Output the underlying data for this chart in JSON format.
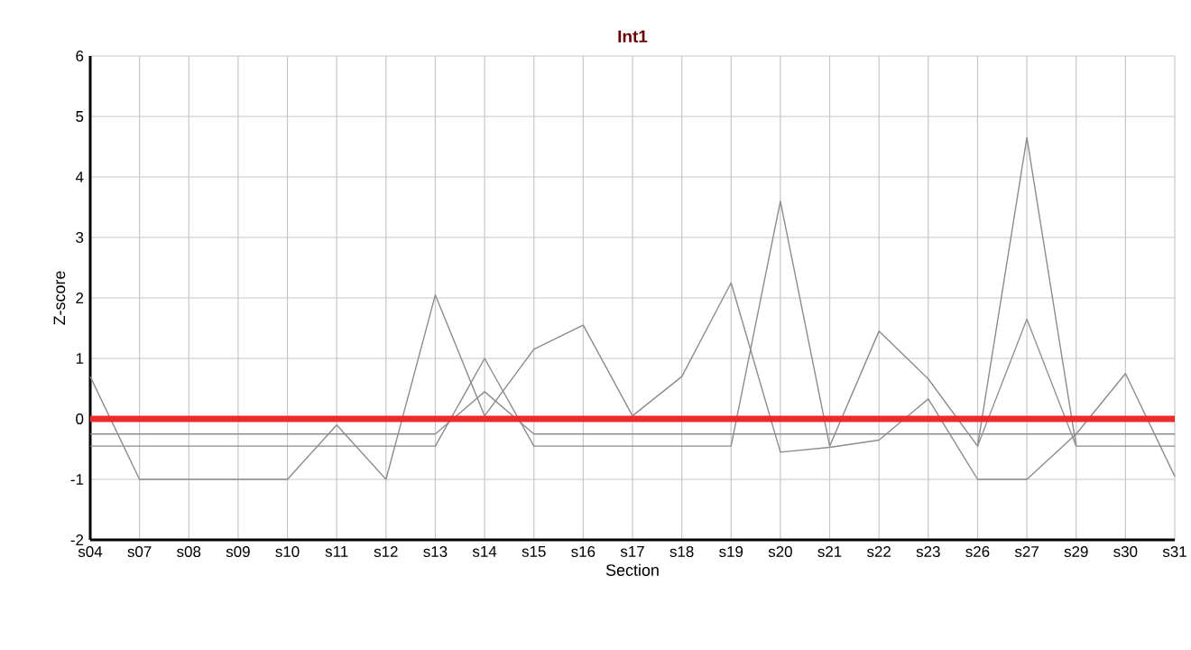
{
  "chart_data": {
    "type": "line",
    "title": "Int1",
    "xlabel": "Section",
    "ylabel": "Z-score",
    "categories": [
      "s04",
      "s07",
      "s08",
      "s09",
      "s10",
      "s11",
      "s12",
      "s13",
      "s14",
      "s15",
      "s16",
      "s17",
      "s18",
      "s19",
      "s20",
      "s21",
      "s22",
      "s23",
      "s26",
      "s27",
      "s29",
      "s30",
      "s31"
    ],
    "series": [
      {
        "color": "#8c8c8c",
        "values": [
          0.7,
          -1,
          -1,
          -1,
          -1,
          -0.1,
          -1,
          2.05,
          0.05,
          1.15,
          1.55,
          0.05,
          0.7,
          2.25,
          -0.55,
          -0.47,
          -0.35,
          0.33,
          -1,
          -1,
          -0.25,
          0.75,
          -0.95
        ]
      },
      {
        "color": "#8c8c8c",
        "values": [
          -0.45,
          -0.45,
          -0.45,
          -0.45,
          -0.45,
          -0.45,
          -0.45,
          -0.45,
          1.0,
          -0.45,
          -0.45,
          -0.45,
          -0.45,
          -0.45,
          3.6,
          -0.45,
          1.45,
          0.66,
          -0.45,
          4.65,
          -0.45,
          -0.45,
          -0.45
        ]
      },
      {
        "color": "#8c8c8c",
        "values": [
          -0.25,
          -0.25,
          -0.25,
          -0.25,
          -0.25,
          -0.25,
          -0.25,
          -0.25,
          0.45,
          -0.25,
          -0.25,
          -0.25,
          -0.25,
          -0.25,
          -0.25,
          -0.25,
          -0.25,
          -0.25,
          -0.25,
          -0.25,
          -0.25,
          -0.25,
          -0.25
        ]
      },
      {
        "color": "#939393",
        "values": [
          null,
          null,
          null,
          null,
          null,
          null,
          null,
          null,
          null,
          null,
          null,
          null,
          null,
          null,
          null,
          null,
          null,
          null,
          -0.45,
          1.65,
          -0.45,
          null,
          null
        ]
      },
      {
        "color": "#ee2a2a",
        "values": [
          0,
          0,
          0,
          0,
          0,
          0,
          0,
          0,
          0,
          0,
          0,
          0,
          0,
          0,
          0,
          0,
          0,
          0,
          0,
          0,
          0,
          0,
          0
        ]
      }
    ],
    "ylim": [
      -2,
      6
    ],
    "yticks": [
      -2,
      -1,
      0,
      1,
      2,
      3,
      4,
      5,
      6
    ],
    "grid": true,
    "marker": "none",
    "line_style": "solid"
  }
}
